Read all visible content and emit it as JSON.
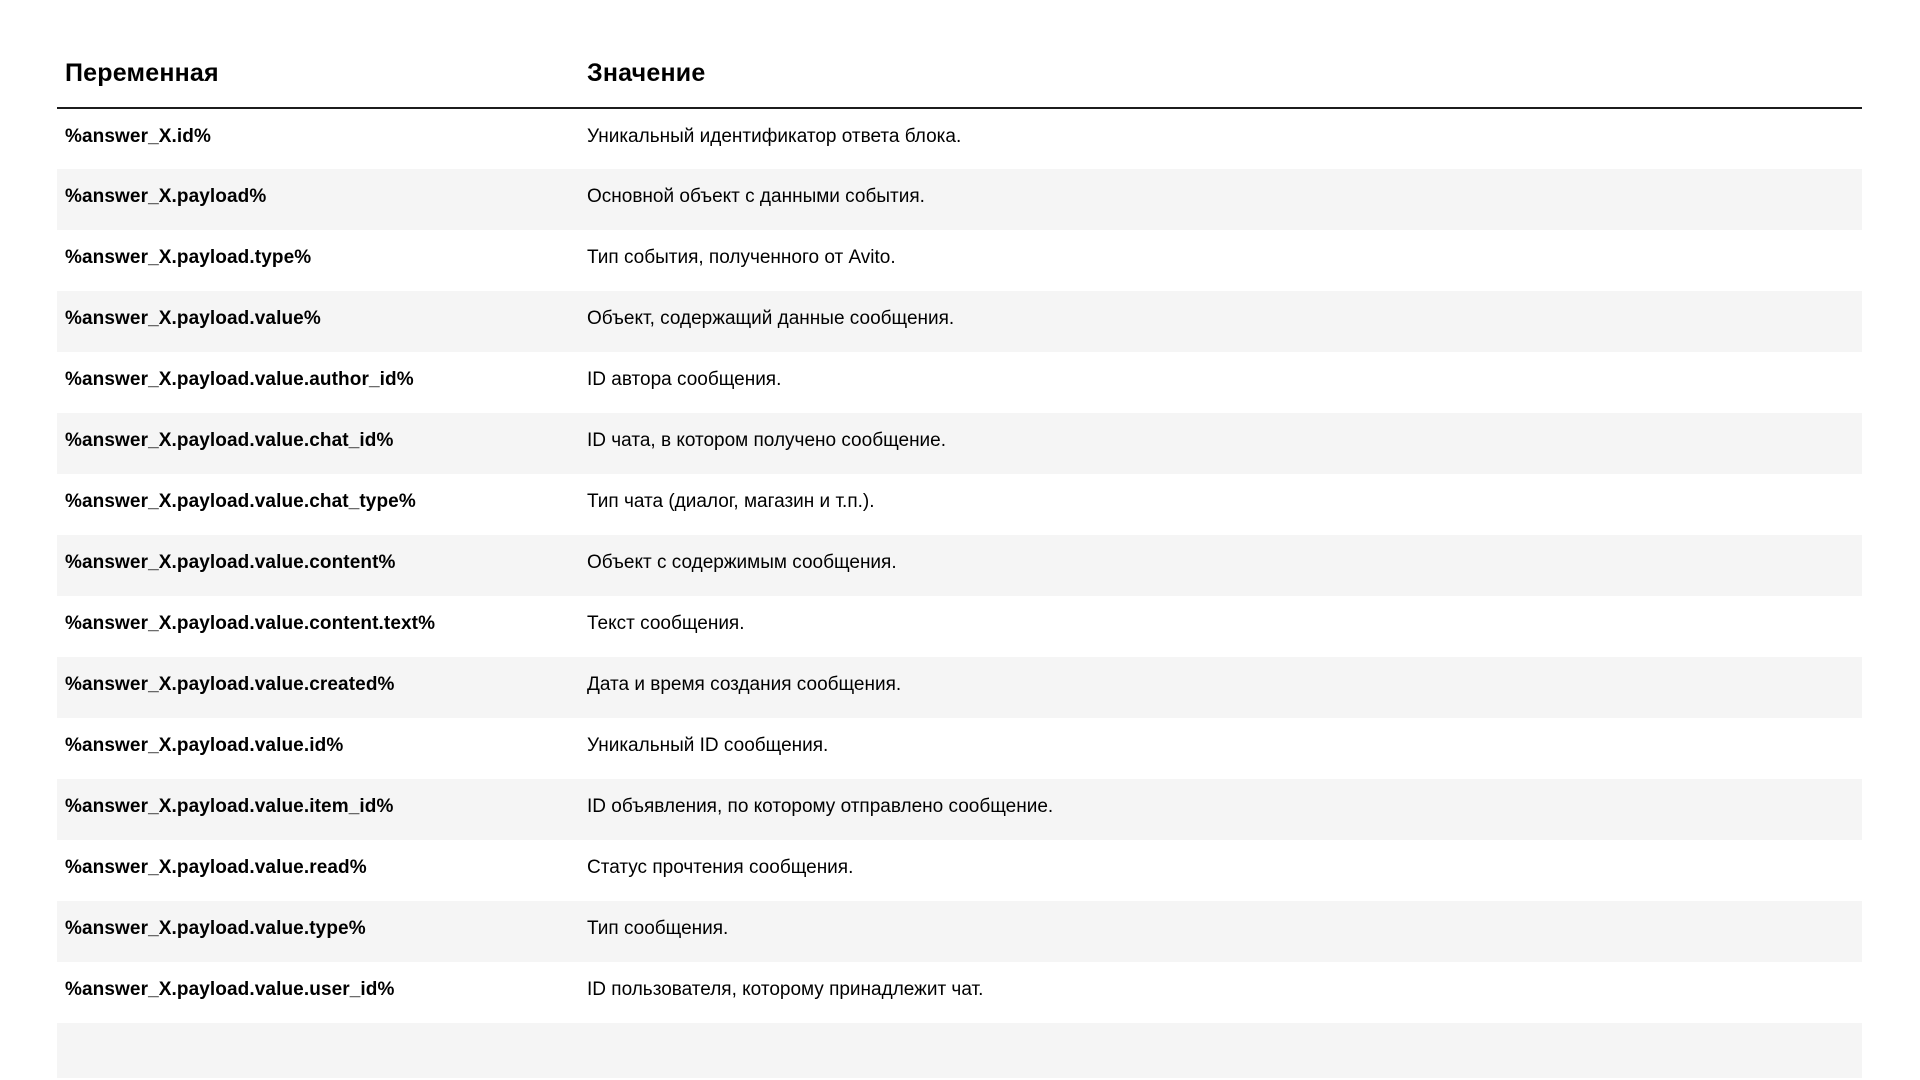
{
  "table": {
    "columns": [
      "Переменная",
      "Значение"
    ],
    "rows": [
      {
        "variable": "%answer_X.id%",
        "value": "Уникальный идентификатор ответа блока."
      },
      {
        "variable": "%answer_X.payload%",
        "value": "Основной объект с данными события."
      },
      {
        "variable": "%answer_X.payload.type%",
        "value": "Тип события, полученного от Avito."
      },
      {
        "variable": "%answer_X.payload.value%",
        "value": "Объект, содержащий данные сообщения."
      },
      {
        "variable": "%answer_X.payload.value.author_id%",
        "value": "ID автора сообщения."
      },
      {
        "variable": "%answer_X.payload.value.chat_id%",
        "value": "ID чата, в котором получено сообщение."
      },
      {
        "variable": "%answer_X.payload.value.chat_type%",
        "value": "Тип чата (диалог, магазин и т.п.)."
      },
      {
        "variable": "%answer_X.payload.value.content%",
        "value": "Объект с содержимым сообщения."
      },
      {
        "variable": "%answer_X.payload.value.content.text%",
        "value": "Текст сообщения."
      },
      {
        "variable": "%answer_X.payload.value.created%",
        "value": "Дата и время создания сообщения."
      },
      {
        "variable": "%answer_X.payload.value.id%",
        "value": "Уникальный ID сообщения."
      },
      {
        "variable": "%answer_X.payload.value.item_id%",
        "value": "ID объявления, по которому отправлено сообщение."
      },
      {
        "variable": "%answer_X.payload.value.read%",
        "value": "Статус прочтения сообщения."
      },
      {
        "variable": "%answer_X.payload.value.type%",
        "value": "Тип сообщения."
      },
      {
        "variable": "%answer_X.payload.value.user_id%",
        "value": "ID пользователя, которому принадлежит чат."
      }
    ],
    "colors": {
      "page_bg": "#ffffff",
      "row_alt_bg": "#f5f5f5",
      "header_border": "#1c1c1c",
      "text": "#000000"
    }
  }
}
